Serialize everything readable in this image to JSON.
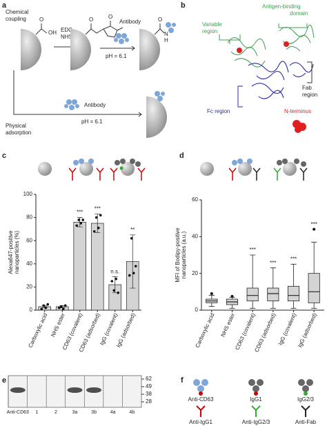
{
  "panel_labels": [
    "a",
    "b",
    "c",
    "d",
    "e",
    "f"
  ],
  "panel_a": {
    "top_title": [
      "Chemical",
      "coupling"
    ],
    "reagent": [
      "EDC–",
      "NHS"
    ],
    "hydroxyl": "OH",
    "oxygen": "O",
    "antibody_top": "Antibody",
    "ph_top": "pH = 6.1",
    "amide_n": "N",
    "amide_h": "H",
    "antibody_bottom": "Antibody",
    "ph_bottom": "pH = 6.1",
    "bottom_title": [
      "Physical",
      "adsorption"
    ]
  },
  "panel_b": {
    "variable_region": [
      "Variable",
      "region"
    ],
    "antigen_binding": [
      "Antigen-binding",
      "domain"
    ],
    "fab_region": [
      "Fab",
      "region"
    ],
    "fc_region": "Fc region",
    "n_terminus": "N-terminus"
  },
  "chart_data": [
    {
      "type": "bar",
      "ylabel": [
        "Alexa647-positive",
        "nanoparticles (%)"
      ],
      "categories": [
        "Carboxylic acid",
        "NHS ester",
        "CD63 (covalent)",
        "CD63 (adsorbed)",
        "IgG (covalent)",
        "IgG (adsorbed)"
      ],
      "values": [
        3,
        3,
        76,
        75,
        22,
        42
      ],
      "errors": [
        1,
        1,
        4,
        8,
        7,
        23
      ],
      "points": [
        [
          1,
          4,
          2,
          5
        ],
        [
          2,
          3,
          1,
          4
        ],
        [
          73,
          78,
          75,
          78
        ],
        [
          68,
          80,
          71,
          82
        ],
        [
          25,
          17,
          27,
          15
        ],
        [
          30,
          62,
          32,
          38
        ]
      ],
      "significance": [
        null,
        null,
        "***",
        "***",
        "n.s.",
        "**"
      ],
      "color": "#d4d4d4",
      "ylim": [
        0,
        100
      ],
      "yticks": [
        0,
        20,
        40,
        60,
        80,
        100
      ]
    },
    {
      "type": "box",
      "ylabel": [
        "MFI of Bodipy-positive",
        "nanoparticles (a.u.)"
      ],
      "categories": [
        "Carboxylic acid",
        "NHS ester",
        "CD63 (covalent)",
        "CD63 (adsorbed)",
        "IgG (covalent)",
        "IgG (adsorbed)"
      ],
      "whisker_low": [
        2,
        1,
        1,
        1,
        1,
        1
      ],
      "q1": [
        4,
        3,
        5,
        5,
        5,
        4
      ],
      "median": [
        5,
        4.5,
        8,
        9,
        8,
        10
      ],
      "q3": [
        6,
        6,
        12,
        12,
        13,
        20
      ],
      "whisker_high": [
        8,
        7,
        30,
        23,
        25,
        37
      ],
      "outliers": [
        [
          9
        ],
        [
          7.5
        ],
        [],
        [],
        [],
        [
          44
        ]
      ],
      "significance": [
        null,
        null,
        "***",
        "***",
        "***",
        "***"
      ],
      "color": "#d4d4d4",
      "ylim": [
        0,
        60
      ],
      "yticks": [
        0,
        20,
        40,
        60
      ]
    }
  ],
  "panel_e": {
    "lanes": [
      "Anti-CD63",
      "1",
      "2",
      "3a",
      "3b",
      "4a",
      "4b"
    ],
    "markers": [
      62,
      49,
      38,
      28
    ]
  },
  "panel_f": {
    "labels": [
      "Anti-CD63",
      "IgG1",
      "IgG2/3",
      "Anti-IgG1",
      "Anti-IgG2/3",
      "Anti-Fab"
    ]
  }
}
